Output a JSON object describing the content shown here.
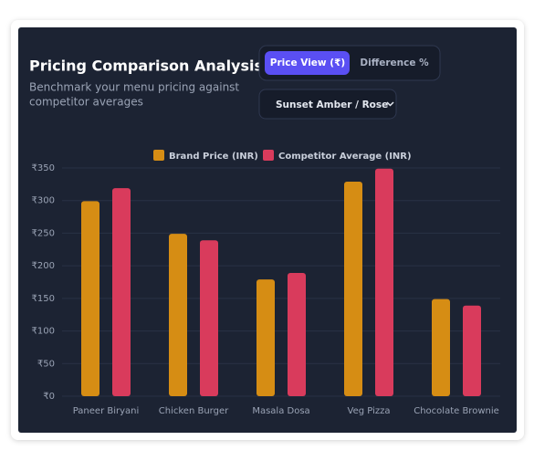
{
  "controls": {
    "tabs": [
      "Price View (₹)",
      "Difference %"
    ],
    "palette": "Sunset Amber / Rose"
  },
  "chart_data": {
    "type": "bar",
    "title": "Pricing Comparison Analysis",
    "subtitle": [
      "Benchmark your menu pricing against",
      "competitor averages"
    ],
    "categories": [
      "Paneer Biryani",
      "Chicken Burger",
      "Masala Dosa",
      "Veg Pizza",
      "Chocolate Brownie"
    ],
    "series": [
      {
        "name": "Brand Price (INR)",
        "color": "#d68d14",
        "values": [
          299,
          249,
          179,
          329,
          149
        ]
      },
      {
        "name": "Competitor Average (INR)",
        "color": "#d93b5c",
        "values": [
          319,
          239,
          189,
          349,
          139
        ]
      }
    ],
    "ylim": [
      0,
      350
    ],
    "yticks": [
      {
        "value": 0,
        "label": "₹0"
      },
      {
        "value": 50,
        "label": "₹50"
      },
      {
        "value": 100,
        "label": "₹100"
      },
      {
        "value": 150,
        "label": "₹150"
      },
      {
        "value": 200,
        "label": "₹200"
      },
      {
        "value": 250,
        "label": "₹250"
      },
      {
        "value": 300,
        "label": "₹300"
      },
      {
        "value": 350,
        "label": "₹350"
      }
    ],
    "grid": true,
    "legend": "top"
  }
}
